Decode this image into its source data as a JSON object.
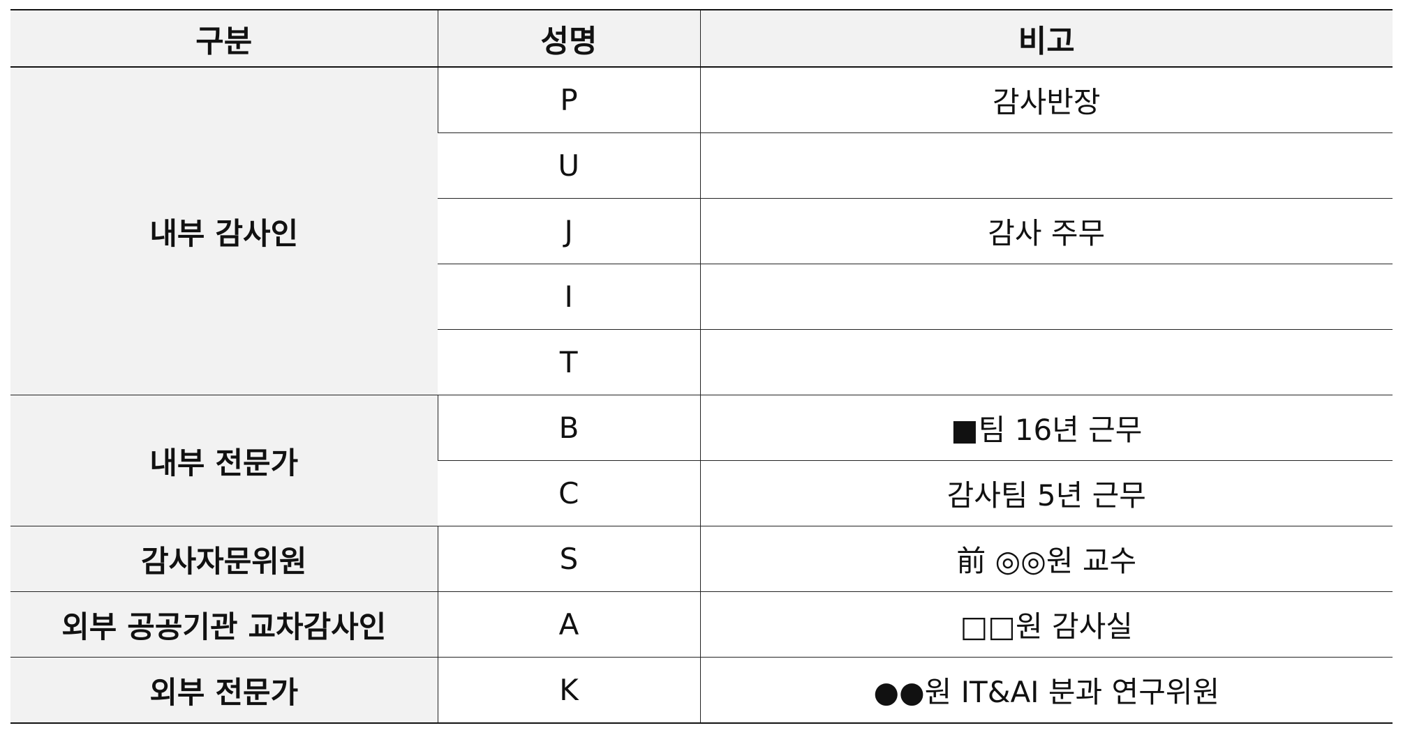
{
  "table": {
    "headers": [
      "구분",
      "성명",
      "비고"
    ],
    "groups": [
      {
        "label": "내부 감사인",
        "rows": [
          {
            "name": "P",
            "note": "감사반장"
          },
          {
            "name": "U",
            "note": ""
          },
          {
            "name": "J",
            "note": "감사 주무"
          },
          {
            "name": "I",
            "note": ""
          },
          {
            "name": "T",
            "note": ""
          }
        ]
      },
      {
        "label": "내부 전문가",
        "rows": [
          {
            "name": "B",
            "note": "■팀 16년 근무"
          },
          {
            "name": "C",
            "note": "감사팀 5년 근무"
          }
        ]
      },
      {
        "label": "감사자문위원",
        "rows": [
          {
            "name": "S",
            "note": "前 ◎◎원 교수"
          }
        ]
      },
      {
        "label": "외부 공공기관 교차감사인",
        "rows": [
          {
            "name": "A",
            "note": "□□원 감사실"
          }
        ]
      },
      {
        "label": "외부 전문가",
        "rows": [
          {
            "name": "K",
            "note": "●●원 IT&AI 분과 연구위원"
          }
        ]
      }
    ]
  }
}
